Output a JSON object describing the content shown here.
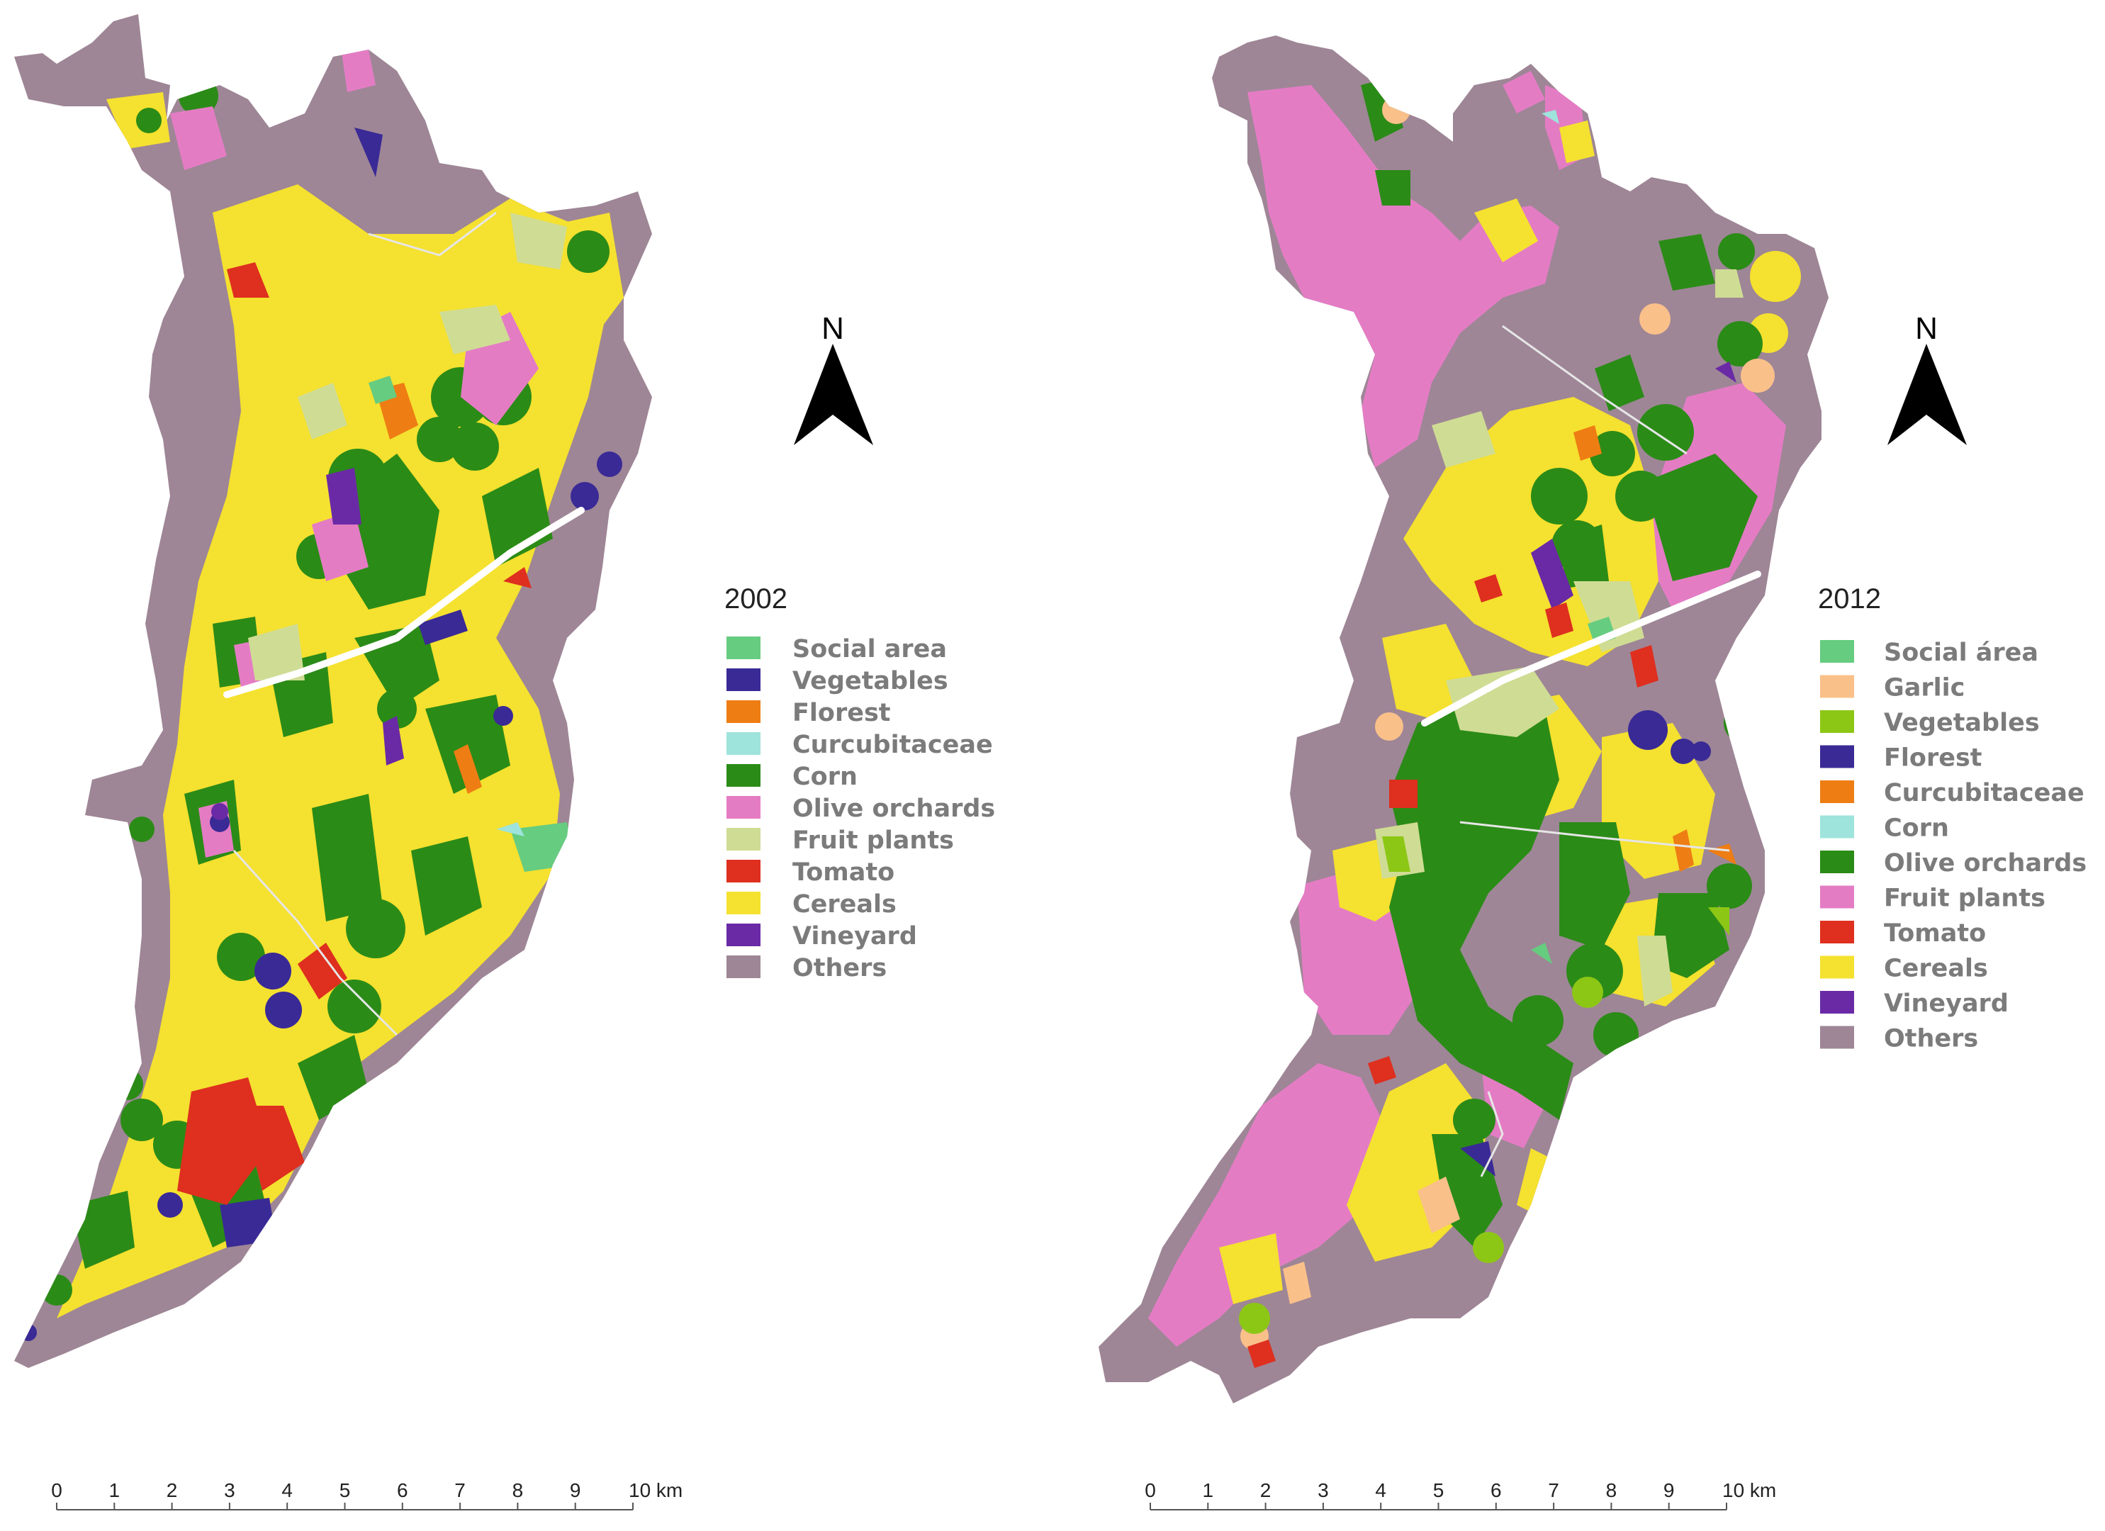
{
  "maps": [
    {
      "id": "map-2002",
      "year": "2002",
      "north_label": "N",
      "legend": [
        {
          "label": "Social area",
          "color": "#66cc80"
        },
        {
          "label": "Vegetables",
          "color": "#3a2a96"
        },
        {
          "label": "Florest",
          "color": "#ee7d14"
        },
        {
          "label": "Curcubitaceae",
          "color": "#9ee3dc"
        },
        {
          "label": "Corn",
          "color": "#2b8b17"
        },
        {
          "label": "Olive orchards",
          "color": "#e47cc4"
        },
        {
          "label": "Fruit plants",
          "color": "#cfdc94"
        },
        {
          "label": "Tomato",
          "color": "#de2f1f"
        },
        {
          "label": "Cereals",
          "color": "#f5e12f"
        },
        {
          "label": "Vineyard",
          "color": "#6a2aa6"
        },
        {
          "label": "Others",
          "color": "#9e8696"
        }
      ],
      "scale": {
        "ticks": [
          "0",
          "1",
          "2",
          "3",
          "4",
          "5",
          "6",
          "7",
          "8",
          "9",
          "10 km"
        ]
      }
    },
    {
      "id": "map-2012",
      "year": "2012",
      "north_label": "N",
      "legend": [
        {
          "label": "Social área",
          "color": "#66cc80"
        },
        {
          "label": "Garlic",
          "color": "#fac08a"
        },
        {
          "label": "Vegetables",
          "color": "#8dc716"
        },
        {
          "label": "Florest",
          "color": "#3a2a96"
        },
        {
          "label": "Curcubitaceae",
          "color": "#ee7d14"
        },
        {
          "label": "Corn",
          "color": "#9ee3dc"
        },
        {
          "label": "Olive orchards",
          "color": "#2b8b17"
        },
        {
          "label": "Fruit plants",
          "color": "#e47cc4"
        },
        {
          "label": "Tomato",
          "color": "#de2f1f"
        },
        {
          "label": "Cereals",
          "color": "#f5e12f"
        },
        {
          "label": "Vineyard",
          "color": "#6a2aa6"
        },
        {
          "label": "Others",
          "color": "#9e8696"
        }
      ],
      "scale": {
        "ticks": [
          "0",
          "1",
          "2",
          "3",
          "4",
          "5",
          "6",
          "7",
          "8",
          "9",
          "10 km"
        ]
      }
    }
  ]
}
